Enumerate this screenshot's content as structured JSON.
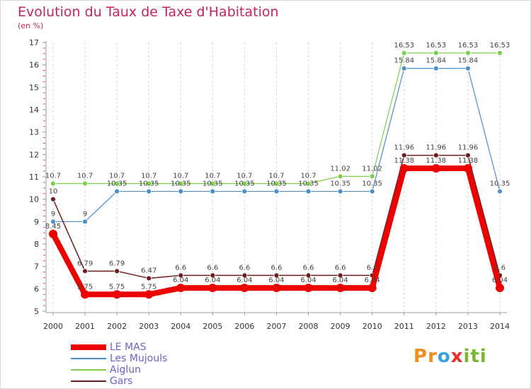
{
  "header": {
    "title": "Evolution du Taux de Taxe d'Habitation",
    "unit": "(en %)"
  },
  "brand": {
    "letters": [
      "P",
      "r",
      "o",
      "x",
      "i",
      "t",
      "i"
    ],
    "colors": [
      "#f28c1e",
      "#f28c1e",
      "#3aa0dc",
      "#e8302b",
      "#7ab82f",
      "#7ab82f",
      "#7ab82f"
    ]
  },
  "chart_data": {
    "type": "line",
    "title": "Evolution du Taux de Taxe d'Habitation",
    "ylabel": "(en %)",
    "x": [
      "2000",
      "2001",
      "2002",
      "2003",
      "2004",
      "2005",
      "2006",
      "2007",
      "2008",
      "2009",
      "2010",
      "2011",
      "2012",
      "2013",
      "2014"
    ],
    "ylim": [
      5,
      17
    ],
    "yticks": [
      "5",
      "6",
      "7",
      "8",
      "9",
      "10",
      "11",
      "12",
      "13",
      "14",
      "15",
      "16",
      "17"
    ],
    "grid": "vertical dashed",
    "legend_position": "bottom-left",
    "series": [
      {
        "name": "LE MAS",
        "color": "#ee0000",
        "values": [
          8.45,
          5.75,
          5.75,
          5.75,
          6.04,
          6.04,
          6.04,
          6.04,
          6.04,
          6.04,
          6.04,
          11.38,
          11.38,
          11.38,
          6.04
        ],
        "labels": [
          "8.45",
          "5.75",
          "5.75",
          "5.75",
          "6.04",
          "6.04",
          "6.04",
          "6.04",
          "6.04",
          "6.04",
          "6.04",
          "11.38",
          "11.38",
          "11.38",
          "6.04"
        ]
      },
      {
        "name": "Les Mujouls",
        "color": "#4a8fc8",
        "values": [
          9,
          9,
          10.35,
          10.35,
          10.35,
          10.35,
          10.35,
          10.35,
          10.35,
          10.35,
          10.35,
          15.84,
          15.84,
          15.84,
          10.35
        ],
        "labels": [
          "9",
          "9",
          "10.35",
          "10.35",
          "10.35",
          "10.35",
          "10.35",
          "10.35",
          "10.35",
          "10.35",
          "10.35",
          "15.84",
          "15.84",
          "15.84",
          "10.35"
        ]
      },
      {
        "name": "Aiglun",
        "color": "#7cd04a",
        "values": [
          10.7,
          10.7,
          10.7,
          10.7,
          10.7,
          10.7,
          10.7,
          10.7,
          10.7,
          11.02,
          11.02,
          16.53,
          16.53,
          16.53,
          16.53
        ],
        "labels": [
          "10.7",
          "10.7",
          "10.7",
          "10.7",
          "10.7",
          "10.7",
          "10.7",
          "10.7",
          "10.7",
          "11.02",
          "11.02",
          "16.53",
          "16.53",
          "16.53",
          "16.53"
        ]
      },
      {
        "name": "Gars",
        "color": "#6b1e1e",
        "values": [
          10,
          6.79,
          6.79,
          6.47,
          6.6,
          6.6,
          6.6,
          6.6,
          6.6,
          6.6,
          6.6,
          11.96,
          11.96,
          11.96,
          6.6
        ],
        "labels": [
          "10",
          "6.79",
          "6.79",
          "6.47",
          "6.6",
          "6.6",
          "6.6",
          "6.6",
          "6.6",
          "6.6",
          "6.6",
          "11.96",
          "11.96",
          "11.96",
          "6.6"
        ]
      }
    ]
  }
}
